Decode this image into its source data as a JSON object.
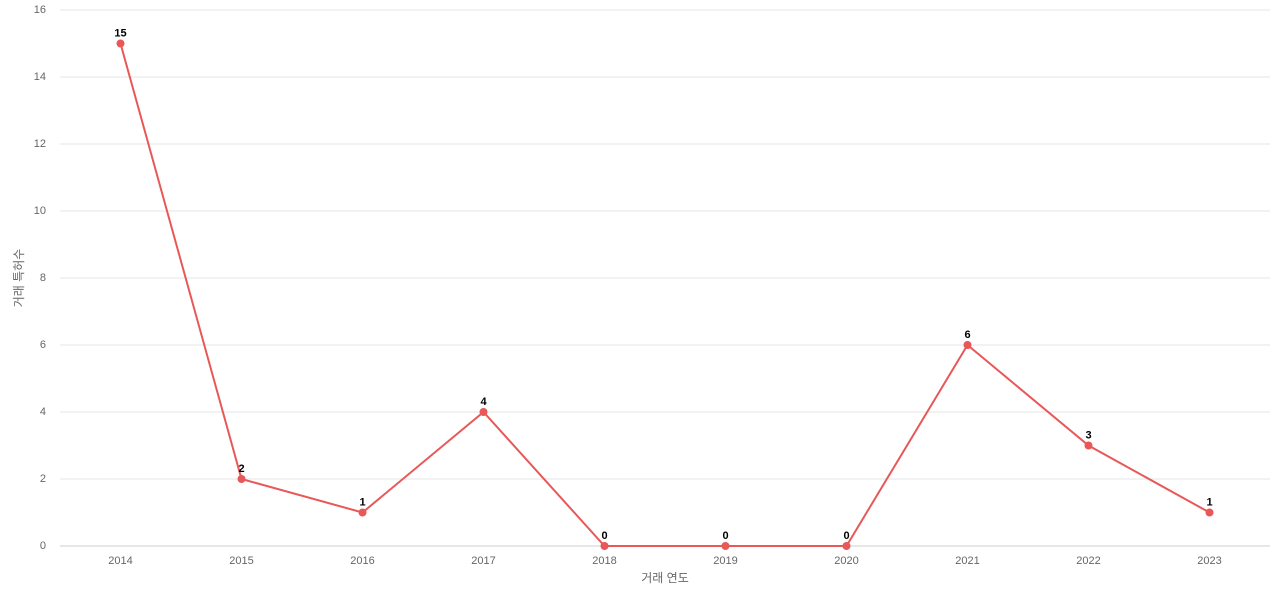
{
  "chart_data": {
    "type": "line",
    "x_label": "거래 연도",
    "y_label": "거래 특허수",
    "categories": [
      "2014",
      "2015",
      "2016",
      "2017",
      "2018",
      "2019",
      "2020",
      "2021",
      "2022",
      "2023"
    ],
    "series": [
      {
        "color": "#e85858",
        "values": [
          15,
          2,
          1,
          4,
          0,
          0,
          0,
          6,
          3,
          1
        ]
      }
    ],
    "ylim": [
      0,
      16
    ],
    "yticks": [
      0,
      2,
      4,
      6,
      8,
      10,
      12,
      14,
      16
    ],
    "grid": true
  }
}
